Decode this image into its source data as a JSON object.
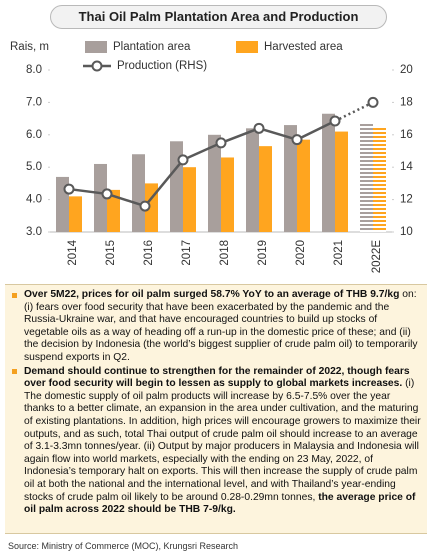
{
  "chart_data": {
    "type": "bar",
    "title": "Thai Oil Palm Plantation Area and Production",
    "y_label": "Rais, m",
    "categories": [
      "2014",
      "2015",
      "2016",
      "2017",
      "2018",
      "2019",
      "2020",
      "2021",
      "2022E"
    ],
    "estimate_index": 8,
    "series": [
      {
        "name": "Plantation area",
        "color": "#a89f9c",
        "values": [
          4.7,
          5.1,
          5.4,
          5.8,
          6.0,
          6.2,
          6.3,
          6.65,
          6.35
        ]
      },
      {
        "name": "Harvested area",
        "color": "#ffa51f",
        "values": [
          4.1,
          4.3,
          4.5,
          5.0,
          5.3,
          5.65,
          5.85,
          6.1,
          6.25
        ]
      },
      {
        "name": "Production (RHS)",
        "type": "line",
        "axis": "y2",
        "color": "#595959",
        "values": [
          12.65,
          12.35,
          11.6,
          14.45,
          15.5,
          16.4,
          15.7,
          16.85,
          18
        ]
      }
    ],
    "ylim": [
      3,
      8
    ],
    "yticks": [
      {
        "value": 3,
        "label": "3.0"
      },
      {
        "value": 4,
        "label": "4.0"
      },
      {
        "value": 5,
        "label": "5.0"
      },
      {
        "value": 6,
        "label": "6.0"
      },
      {
        "value": 7,
        "label": "7.0"
      },
      {
        "value": 8,
        "label": "8.0"
      }
    ],
    "y2lim": [
      10,
      20
    ],
    "y2ticks": [
      10,
      12,
      14,
      16,
      18,
      20
    ],
    "grid": false
  },
  "bullets": [
    [
      {
        "text": "Over 5M22, prices for oil palm surged 58.7% YoY to an average of THB 9.7/kg",
        "bold": true
      },
      {
        "text": " on: (i) fears over food security that have been exacerbated by the pandemic and the Russia-Ukraine war, and that have encouraged countries to build up stocks of vegetable oils as a way of heading off a run-up in the domestic price of these; and (ii) the decision by Indonesia (the world’s biggest supplier of crude palm oil) to temporarily suspend exports in Q2.",
        "bold": false
      }
    ],
    [
      {
        "text": "Demand should continue to strengthen for the remainder of 2022, though fears over food security will begin to lessen as supply to global markets increases.",
        "bold": true
      },
      {
        "text": " (i) The domestic supply of oil palm products will increase by 6.5-7.5% over the year thanks to a better climate, an expansion in the area under cultivation, and the maturing of existing plantations. In addition, high prices will encourage growers to maximize their outputs, and as such, total Thai output of crude palm oil should increase to an average of 3.1-3.3mn tonnes/year. (ii) Output by major producers in Malaysia and Indonesia will again flow into world markets, especially with the ending on 23 May, 2022, of Indonesia’s temporary halt on exports. This will then increase the supply of crude palm oil at both the national and the international level, and with Thailand’s year-ending stocks of crude palm oil likely to be around 0.28-0.29mn tonnes, ",
        "bold": false
      },
      {
        "text": "the average price of oil palm across 2022 should be THB 7-9/kg.",
        "bold": true
      }
    ]
  ],
  "source": "Source: Ministry of Commerce (MOC), Krungsri Research"
}
